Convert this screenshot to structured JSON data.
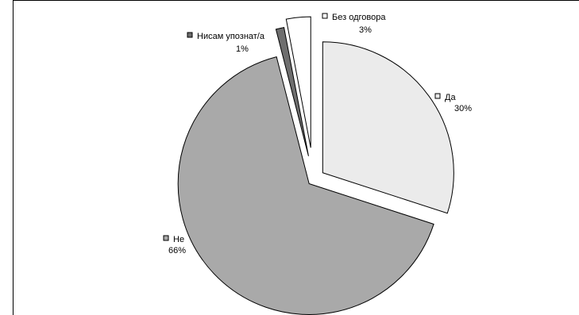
{
  "chart_data": {
    "type": "pie",
    "title": "",
    "slices": [
      {
        "label": "Да",
        "value": 30,
        "display": "30%",
        "color": "#ebebeb"
      },
      {
        "label": "Не",
        "value": 66,
        "display": "66%",
        "color": "#a9a9a9"
      },
      {
        "label": "Нисам упознат/а",
        "value": 1,
        "display": "1%",
        "color": "#6e6e6e"
      },
      {
        "label": "Без одговора",
        "value": 3,
        "display": "3%",
        "color": "#ffffff"
      }
    ],
    "exploded": true,
    "legend": "labels next to slices"
  }
}
